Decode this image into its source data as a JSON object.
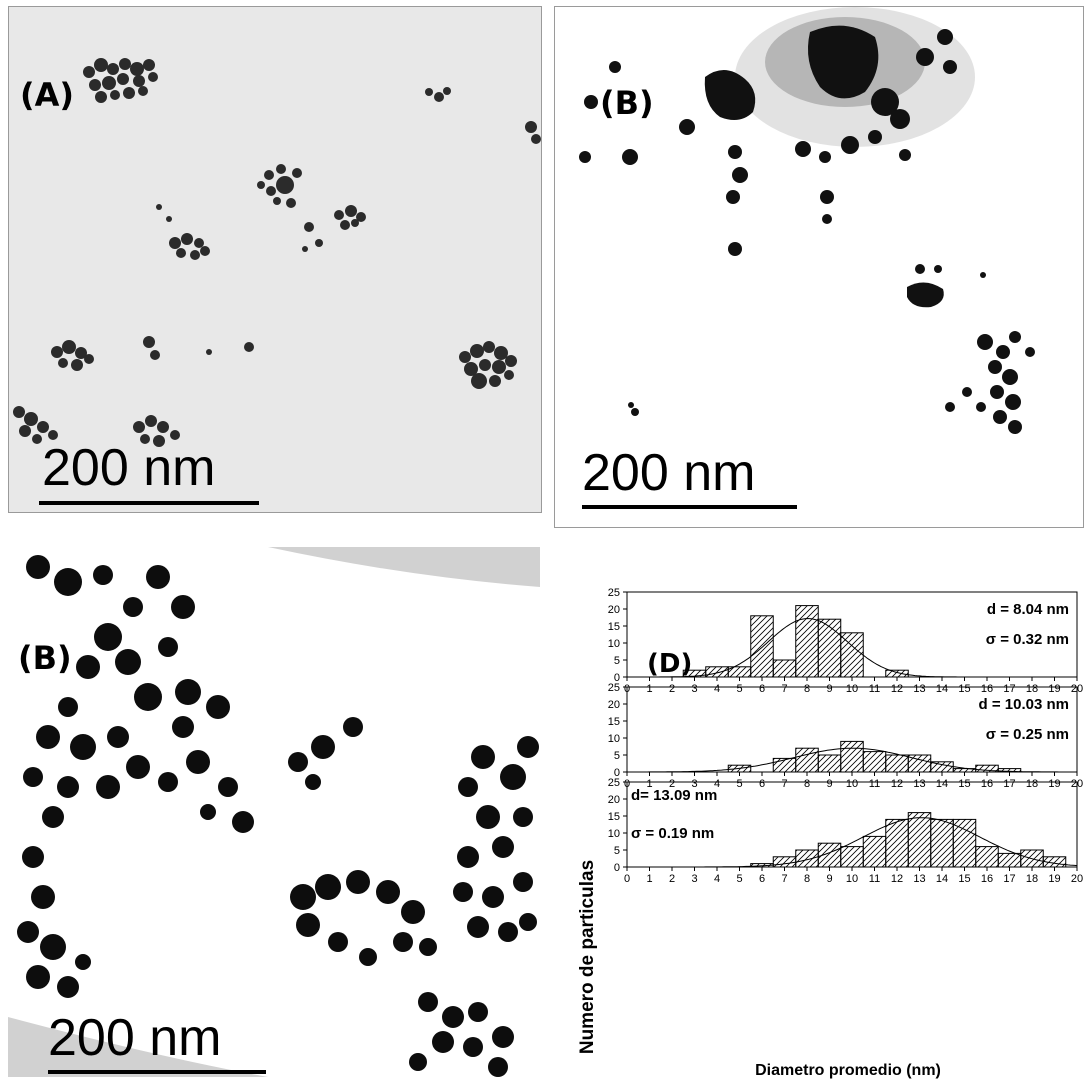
{
  "panels": {
    "A": {
      "label": "(A)",
      "scale_text": "200 nm"
    },
    "B": {
      "label": "(B)",
      "scale_text": "200 nm"
    },
    "C": {
      "label": "(B)",
      "scale_text": "200 nm"
    },
    "D": {
      "label": "(D)"
    }
  },
  "chart_data": {
    "type": "bar",
    "ylabel": "Numero de particulas",
    "xlabel": "Diametro promedio (nm)",
    "x_ticks": [
      0,
      1,
      2,
      3,
      4,
      5,
      6,
      7,
      8,
      9,
      10,
      11,
      12,
      13,
      14,
      15,
      16,
      17,
      18,
      19,
      20
    ],
    "y_ticks": [
      0,
      5,
      10,
      15,
      20,
      25
    ],
    "ylim": [
      0,
      25
    ],
    "xlim": [
      0,
      20
    ],
    "bar_fill": "hatched",
    "subplots": [
      {
        "stats": [
          "d = 8.04 nm",
          "σ = 0.32 nm"
        ],
        "stats_position": "right",
        "bins": [
          3,
          4,
          5,
          6,
          7,
          8,
          9,
          10,
          12
        ],
        "values": [
          2,
          3,
          3,
          18,
          5,
          21,
          17,
          13,
          2
        ],
        "fit_mean": 8.04,
        "fit_peak": 17.2,
        "fit_sd": 1.75
      },
      {
        "stats": [
          "d = 10.03 nm",
          "σ = 0.25 nm"
        ],
        "stats_position": "right",
        "bins": [
          5,
          7,
          8,
          9,
          10,
          11,
          12,
          13,
          14,
          15,
          16,
          17
        ],
        "values": [
          2,
          4,
          7,
          5,
          9,
          6,
          5,
          5,
          3,
          1,
          2,
          1
        ],
        "fit_mean": 10.03,
        "fit_peak": 7.0,
        "fit_sd": 2.6
      },
      {
        "stats": [
          "d= 13.09 nm",
          "σ = 0.19 nm"
        ],
        "stats_position": "left",
        "bins": [
          6,
          7,
          8,
          9,
          10,
          11,
          12,
          13,
          14,
          15,
          16,
          17,
          18,
          19
        ],
        "values": [
          1,
          3,
          5,
          7,
          6,
          9,
          14,
          16,
          14,
          14,
          6,
          4,
          5,
          3
        ],
        "fit_mean": 13.09,
        "fit_peak": 14.5,
        "fit_sd": 2.6
      }
    ]
  }
}
